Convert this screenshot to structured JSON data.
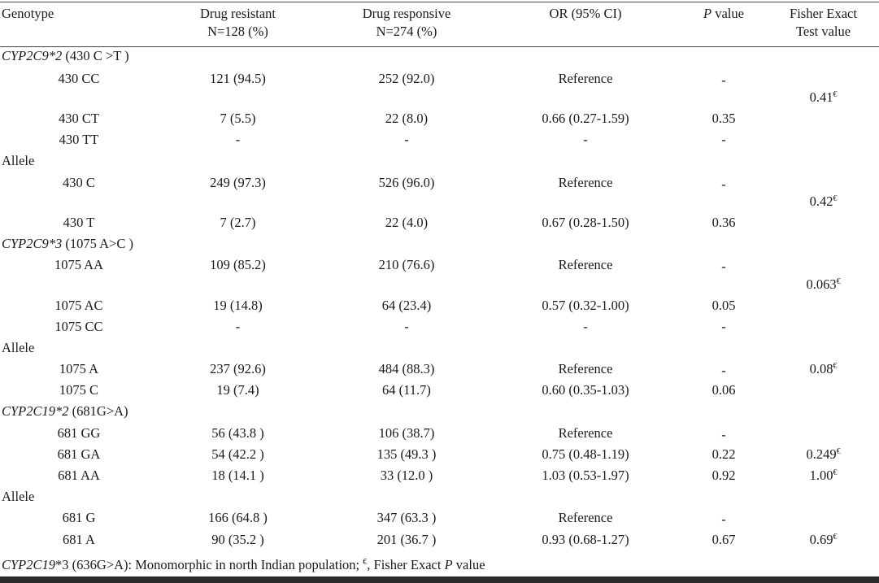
{
  "header": {
    "genotype": "Genotype",
    "drug_resistant": "Drug resistant",
    "drug_resistant_n": "N=128 (%)",
    "drug_responsive": "Drug responsive",
    "drug_responsive_n": "N=274 (%)",
    "or": "OR (95% CI)",
    "p_italic": "P",
    "p_rest": " value",
    "fisher_1": "Fisher Exact",
    "fisher_2": "Test value"
  },
  "sections": {
    "cyp2c9_2": {
      "gene": "CYP2C9*2",
      "variant": " (430 C >T )"
    },
    "cyp2c9_3": {
      "gene": "CYP2C9*3",
      "variant": " (1075 A>C )"
    },
    "cyp2c19_2": {
      "gene": "CYP2C19*2",
      "variant": " (681G>A)"
    },
    "allele_label": "Allele"
  },
  "rows": {
    "r430cc": [
      "430 CC",
      "121 (94.5)",
      "252 (92.0)",
      "Reference",
      "-"
    ],
    "r430ct": [
      "430 CT",
      "7 (5.5)",
      "22 (8.0)",
      "0.66 (0.27-1.59)",
      "0.35"
    ],
    "r430tt": [
      "430 TT",
      "-",
      "-",
      "-",
      "-"
    ],
    "r430c": [
      "430 C",
      "249 (97.3)",
      "526 (96.0)",
      "Reference",
      "-"
    ],
    "r430t": [
      "430 T",
      "7 (2.7)",
      "22 (4.0)",
      "0.67  (0.28-1.50)",
      "0.36"
    ],
    "r1075aa": [
      "1075 AA",
      "109 (85.2)",
      "210 (76.6)",
      "Reference",
      "-"
    ],
    "r1075ac": [
      "1075 AC",
      "19  (14.8)",
      "64 (23.4)",
      "0.57  (0.32-1.00)",
      "0.05"
    ],
    "r1075cc": [
      "1075 CC",
      "-",
      "-",
      "-",
      "-"
    ],
    "r1075a": [
      "1075 A",
      "237 (92.6)",
      "484 (88.3)",
      "Reference",
      "-"
    ],
    "r1075c": [
      "1075 C",
      "19 (7.4)",
      "64 (11.7)",
      "0.60  (0.35-1.03)",
      "0.06"
    ],
    "r681gg": [
      "681 GG",
      "56 (43.8 )",
      "106 (38.7)",
      "Reference",
      "-"
    ],
    "r681ga": [
      "681 GA",
      "54 (42.2 )",
      "135 (49.3 )",
      "0.75  (0.48-1.19)",
      "0.22"
    ],
    "r681aa": [
      "681 AA",
      "18 (14.1 )",
      "33 (12.0 )",
      "1.03  (0.53-1.97)",
      "0.92"
    ],
    "r681g": [
      "681 G",
      "166 (64.8 )",
      "347 (63.3 )",
      "Reference",
      "-"
    ],
    "r681a": [
      "681 A",
      "90 (35.2 )",
      "201 (36.7 )",
      "0.93 (0.68-1.27)",
      "0.67"
    ]
  },
  "fisher": {
    "f1": "0.41",
    "f2": "0.42",
    "f3": "0.063",
    "f4": "0.08",
    "f5": "0.249",
    "f6": "1.00",
    "f7": "0.69",
    "mark": "€"
  },
  "footnote": {
    "gene": "CYP2C19",
    "text1": "*3 (636G>A): Monomorphic in north Indian population; ",
    "mark": "€",
    "text2": ", Fisher Exact ",
    "p": "P",
    "text3": " value"
  }
}
